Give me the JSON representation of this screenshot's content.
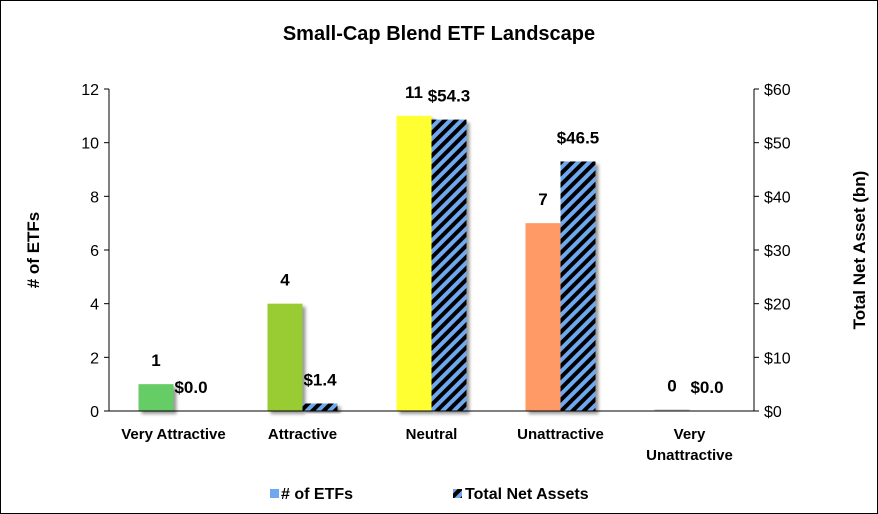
{
  "chart_data": {
    "type": "bar",
    "title": "Small-Cap Blend ETF Landscape",
    "categories": [
      [
        "Very Attractive"
      ],
      [
        "Attractive"
      ],
      [
        "Neutral"
      ],
      [
        "Unattractive"
      ],
      [
        "Very",
        "Unattractive"
      ]
    ],
    "category_colors": [
      "#66cc66",
      "#99cc33",
      "#ffff33",
      "#ff9966",
      "#c0c0c0"
    ],
    "series": [
      {
        "name": "# of ETFs",
        "axis": "left",
        "values": [
          1,
          4,
          11,
          7,
          0
        ],
        "labels": [
          "1",
          "4",
          "11",
          "7",
          "0"
        ],
        "legend_color": "#6fa8f0"
      },
      {
        "name": "Total Net Assets",
        "axis": "right",
        "values": [
          0.0,
          1.4,
          54.3,
          46.5,
          0.0
        ],
        "labels": [
          "$0.0",
          "$1.4",
          "$54.3",
          "$46.5",
          "$0.0"
        ],
        "colors": [
          "#000000",
          "#6fa8f0"
        ]
      }
    ],
    "ylabel": "# of ETFs",
    "ylim": [
      0,
      12
    ],
    "yticks": [
      "0",
      "2",
      "4",
      "6",
      "8",
      "10",
      "12"
    ],
    "y2label": "Total Net Asset (bn)",
    "y2lim": [
      0,
      60
    ],
    "y2ticks": [
      "$0",
      "$10",
      "$20",
      "$30",
      "$40",
      "$50",
      "$60"
    ],
    "grid": false,
    "legend_position": "bottom"
  }
}
